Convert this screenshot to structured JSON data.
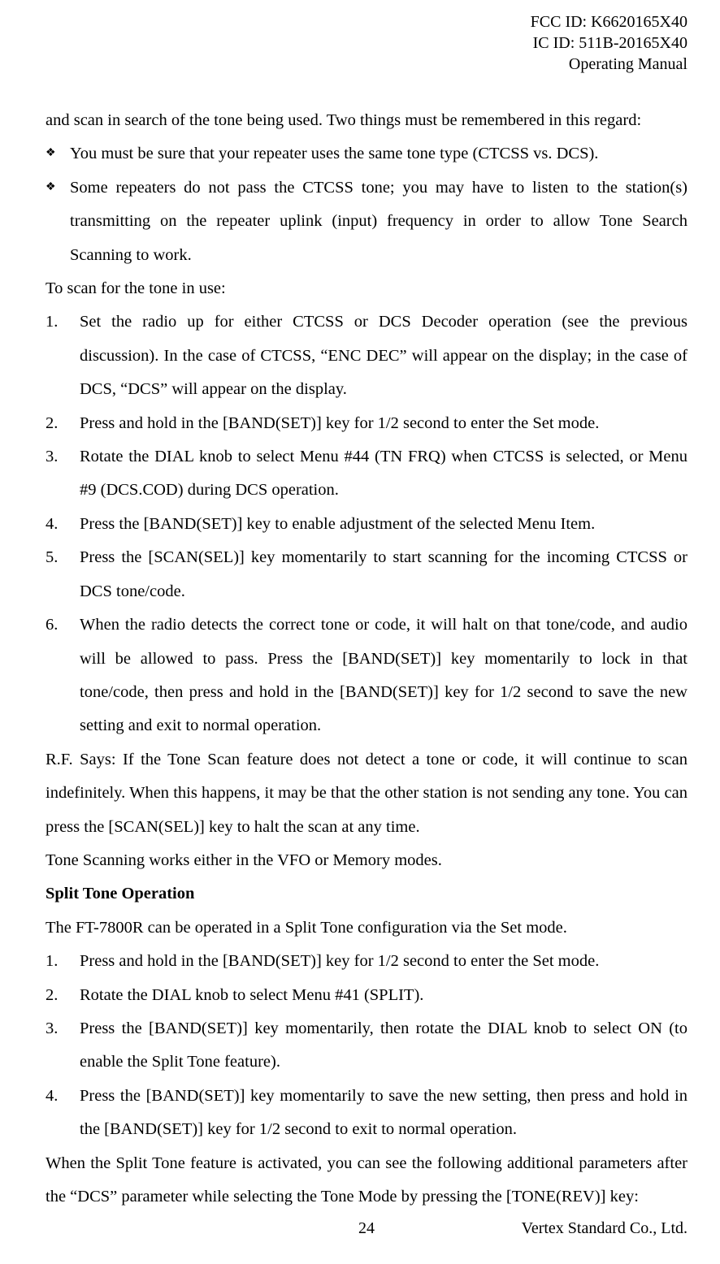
{
  "header": {
    "line1": "FCC ID: K6620165X40",
    "line2": "IC ID: 511B-20165X40",
    "line3": "Operating Manual"
  },
  "intro": "and scan in search of the tone being used. Two things must be remembered in this regard:",
  "bullets": [
    "You must be sure that your repeater uses the same tone type (CTCSS vs. DCS).",
    "Some repeaters do not pass the CTCSS tone; you may have to listen to the station(s) transmitting on the repeater uplink (input) frequency in order to allow Tone Search Scanning to work."
  ],
  "scan_intro": "To scan for the tone in use:",
  "scan_steps": [
    "Set the radio up for either CTCSS or DCS Decoder operation (see the previous discussion). In the case of CTCSS, “ENC DEC” will appear on the display; in the case of DCS, “DCS” will appear on the display.",
    "Press and hold in the [BAND(SET)] key for 1/2 second to enter the Set mode.",
    "Rotate the DIAL knob to select Menu #44 (TN FRQ) when CTCSS is selected, or Menu #9 (DCS.COD) during DCS operation.",
    "Press the [BAND(SET)] key to enable adjustment of the selected Menu Item.",
    "Press the [SCAN(SEL)] key momentarily to start scanning for the incoming CTCSS or DCS tone/code.",
    "When the radio detects the correct tone or code, it will halt on that tone/code, and audio will be allowed to pass. Press the [BAND(SET)] key momentarily to lock in that tone/code, then press and hold in the [BAND(SET)] key for 1/2 second to save the new setting and exit to normal operation."
  ],
  "rf_says": "R.F. Says: If the Tone Scan feature does not detect a tone or code, it will continue to scan indefinitely. When this happens, it may be that the other station is not sending any tone. You can press the [SCAN(SEL)] key to halt the scan at any time.",
  "tone_modes": "Tone Scanning works either in the VFO or Memory modes.",
  "split": {
    "title": "Split Tone Operation",
    "intro": "The FT-7800R can be operated in a Split Tone configuration via the Set mode.",
    "steps": [
      "Press and hold in the [BAND(SET)] key for 1/2 second to enter the Set mode.",
      "Rotate the DIAL knob to select Menu #41 (SPLIT).",
      "Press the [BAND(SET)] key momentarily, then rotate the DIAL knob to select ON (to enable the Split Tone feature).",
      "Press the [BAND(SET)] key momentarily to save the new setting, then press and hold in the [BAND(SET)] key for 1/2 second to exit to normal operation."
    ],
    "outro": "When the Split Tone feature is activated, you can see the following additional parameters after the “DCS” parameter while selecting the Tone Mode by pressing the [TONE(REV)] key:"
  },
  "footer": {
    "page_number": "24",
    "company": "Vertex Standard Co., Ltd."
  },
  "markers": {
    "n1": "1.",
    "n2": "2.",
    "n3": "3.",
    "n4": "4.",
    "n5": "5.",
    "n6": "6."
  },
  "colors": {
    "text": "#000000",
    "background": "#ffffff"
  },
  "typography": {
    "body_font": "Century / Times New Roman serif",
    "body_size_pt": 15,
    "line_height": 2.0,
    "title_weight": "bold"
  }
}
